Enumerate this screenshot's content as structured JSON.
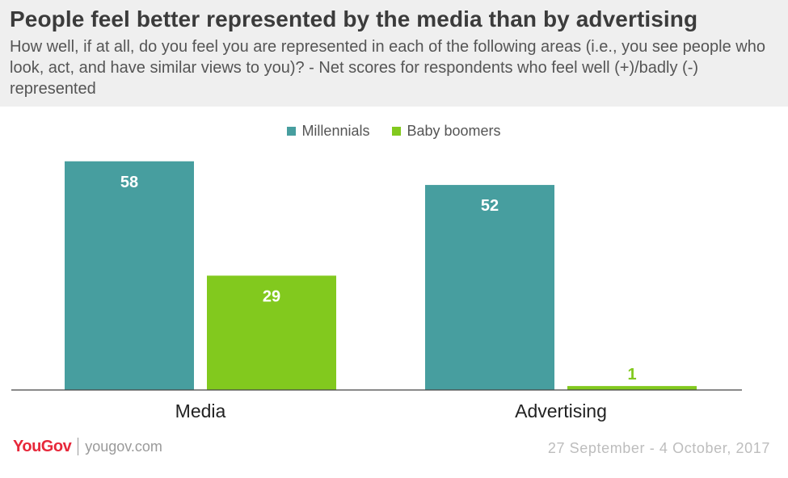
{
  "header": {
    "title": "People feel better represented  by the media than by advertising",
    "subtitle": "How well, if at all, do you feel you are represented in each of the following areas (i.e., you see people who look, act, and have similar views to you)? - Net scores for respondents who feel well (+)/badly (-) represented"
  },
  "chart_data": {
    "type": "bar",
    "categories": [
      "Media",
      "Advertising"
    ],
    "series": [
      {
        "name": "Millennials",
        "values": [
          58,
          52
        ],
        "color": "#479e9f"
      },
      {
        "name": "Baby boomers",
        "values": [
          29,
          1
        ],
        "color": "#82c91e"
      }
    ],
    "ylim": [
      0,
      60
    ],
    "grid": false,
    "legend_position": "top-center",
    "data_label_colors": {
      "inside": "#ffffff",
      "outside": "#82c91e"
    }
  },
  "footer": {
    "brand": "YouGov",
    "url": "yougov.com",
    "date_range": "27 September - 4 October, 2017"
  }
}
